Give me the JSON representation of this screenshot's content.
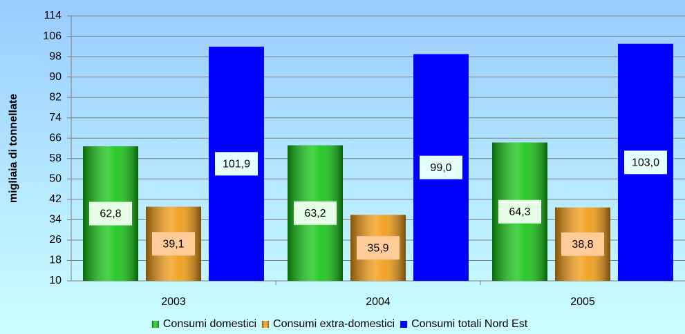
{
  "chart_data": {
    "type": "bar",
    "y_label": "migliaia di tonnellate",
    "categories": [
      "2003",
      "2004",
      "2005"
    ],
    "series": [
      {
        "name": "Consumi domestici",
        "color": "#11c411",
        "label_color": "#e6ffe6",
        "shaded": true,
        "values": [
          62.8,
          63.2,
          64.3
        ],
        "value_labels": [
          "62,8",
          "63,2",
          "64,3"
        ]
      },
      {
        "name": "Consumi extra-domestici",
        "color": "#f29a10",
        "label_color": "#ffcc99",
        "shaded": true,
        "values": [
          39.1,
          35.9,
          38.8
        ],
        "value_labels": [
          "39,1",
          "35,9",
          "38,8"
        ]
      },
      {
        "name": "Consumi totali Nord Est",
        "color": "#0000ff",
        "label_color": "#e6ffff",
        "shaded": false,
        "values": [
          101.9,
          99.0,
          103.0
        ],
        "value_labels": [
          "101,9",
          "99,0",
          "103,0"
        ]
      }
    ],
    "ylim": [
      10,
      114
    ],
    "yticks": [
      10,
      18,
      26,
      34,
      42,
      50,
      58,
      66,
      74,
      82,
      90,
      98,
      106,
      114
    ],
    "grid": true,
    "legend": "bottom"
  }
}
